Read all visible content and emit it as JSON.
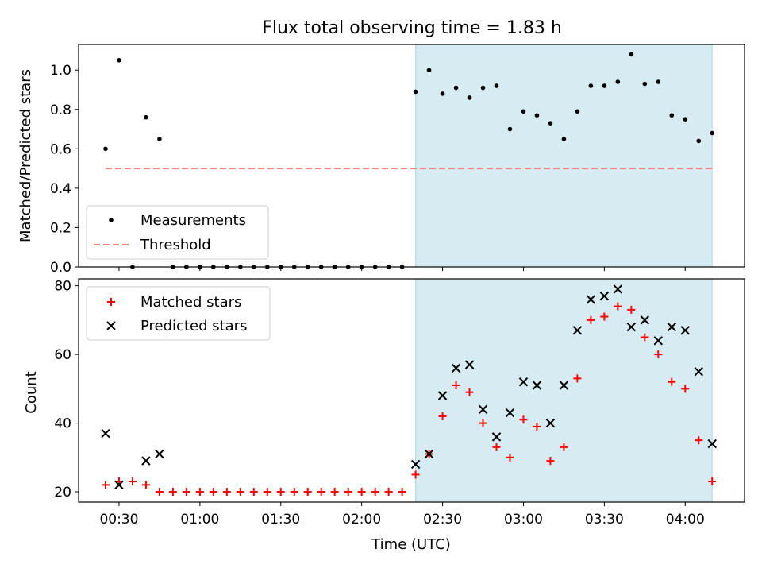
{
  "chart_data": [
    {
      "type": "scatter",
      "title": "Flux total observing time = 1.83 h",
      "ylabel": "Matched/Predicted stars",
      "ylim": [
        0,
        1.13
      ],
      "yticks": [
        "0.0",
        "0.2",
        "0.4",
        "0.6",
        "0.8",
        "1.0"
      ],
      "xlim": [
        "00:15",
        "04:22"
      ],
      "shaded_span": [
        "02:20",
        "04:10"
      ],
      "shaded_color": "#add8e6",
      "legend_position": "lower-left",
      "series": [
        {
          "name": "Measurements",
          "marker": "dot",
          "color": "#000000",
          "x": [
            "00:25",
            "00:30",
            "00:35",
            "00:40",
            "00:45",
            "00:50",
            "00:55",
            "01:00",
            "01:05",
            "01:10",
            "01:15",
            "01:20",
            "01:25",
            "01:30",
            "01:35",
            "01:40",
            "01:45",
            "01:50",
            "01:55",
            "02:00",
            "02:05",
            "02:10",
            "02:15",
            "02:20",
            "02:25",
            "02:30",
            "02:35",
            "02:40",
            "02:45",
            "02:50",
            "02:55",
            "03:00",
            "03:05",
            "03:10",
            "03:15",
            "03:20",
            "03:25",
            "03:30",
            "03:35",
            "03:40",
            "03:45",
            "03:50",
            "03:55",
            "04:00",
            "04:05",
            "04:10"
          ],
          "y": [
            0.6,
            1.05,
            0.0,
            0.76,
            0.65,
            0.0,
            0.0,
            0.0,
            0.0,
            0.0,
            0.0,
            0.0,
            0.0,
            0.0,
            0.0,
            0.0,
            0.0,
            0.0,
            0.0,
            0.0,
            0.0,
            0.0,
            0.0,
            0.89,
            1.0,
            0.88,
            0.91,
            0.86,
            0.91,
            0.92,
            0.7,
            0.79,
            0.77,
            0.73,
            0.65,
            0.79,
            0.92,
            0.92,
            0.94,
            1.08,
            0.93,
            0.94,
            0.77,
            0.75,
            0.64,
            0.68
          ]
        },
        {
          "name": "Threshold",
          "style": "dashed",
          "color": "#ff7f7f",
          "x": [
            "00:25",
            "04:10"
          ],
          "y": [
            0.5,
            0.5
          ]
        }
      ]
    },
    {
      "type": "scatter",
      "xlabel": "Time (UTC)",
      "ylabel": "Count",
      "ylim": [
        17,
        82
      ],
      "yticks": [
        "20",
        "40",
        "60",
        "80"
      ],
      "xlim": [
        "00:15",
        "04:22"
      ],
      "xticks": [
        "00:30",
        "01:00",
        "01:30",
        "02:00",
        "02:30",
        "03:00",
        "03:30",
        "04:00"
      ],
      "shaded_span": [
        "02:20",
        "04:10"
      ],
      "shaded_color": "#add8e6",
      "legend_position": "upper-left",
      "x": [
        "00:25",
        "00:30",
        "00:35",
        "00:40",
        "00:45",
        "00:50",
        "00:55",
        "01:00",
        "01:05",
        "01:10",
        "01:15",
        "01:20",
        "01:25",
        "01:30",
        "01:35",
        "01:40",
        "01:45",
        "01:50",
        "01:55",
        "02:00",
        "02:05",
        "02:10",
        "02:15",
        "02:20",
        "02:25",
        "02:30",
        "02:35",
        "02:40",
        "02:45",
        "02:50",
        "02:55",
        "03:00",
        "03:05",
        "03:10",
        "03:15",
        "03:20",
        "03:25",
        "03:30",
        "03:35",
        "03:40",
        "03:45",
        "03:50",
        "03:55",
        "04:00",
        "04:05",
        "04:10"
      ],
      "series": [
        {
          "name": "Matched stars",
          "marker": "plus",
          "color": "#ff0000",
          "y": [
            22,
            23,
            23,
            22,
            20,
            20,
            20,
            20,
            20,
            20,
            20,
            20,
            20,
            20,
            20,
            20,
            20,
            20,
            20,
            20,
            20,
            20,
            20,
            25,
            31,
            42,
            51,
            49,
            40,
            33,
            30,
            41,
            39,
            29,
            33,
            53,
            70,
            71,
            74,
            73,
            65,
            60,
            52,
            50,
            35,
            23
          ]
        },
        {
          "name": "Predicted stars",
          "marker": "x",
          "color": "#000000",
          "y": [
            37,
            22,
            null,
            29,
            31,
            null,
            null,
            null,
            null,
            null,
            null,
            null,
            null,
            null,
            null,
            null,
            null,
            null,
            null,
            null,
            null,
            null,
            null,
            28,
            31,
            48,
            56,
            57,
            44,
            36,
            43,
            52,
            51,
            40,
            51,
            67,
            76,
            77,
            79,
            68,
            70,
            64,
            68,
            67,
            55,
            34
          ]
        }
      ]
    }
  ]
}
